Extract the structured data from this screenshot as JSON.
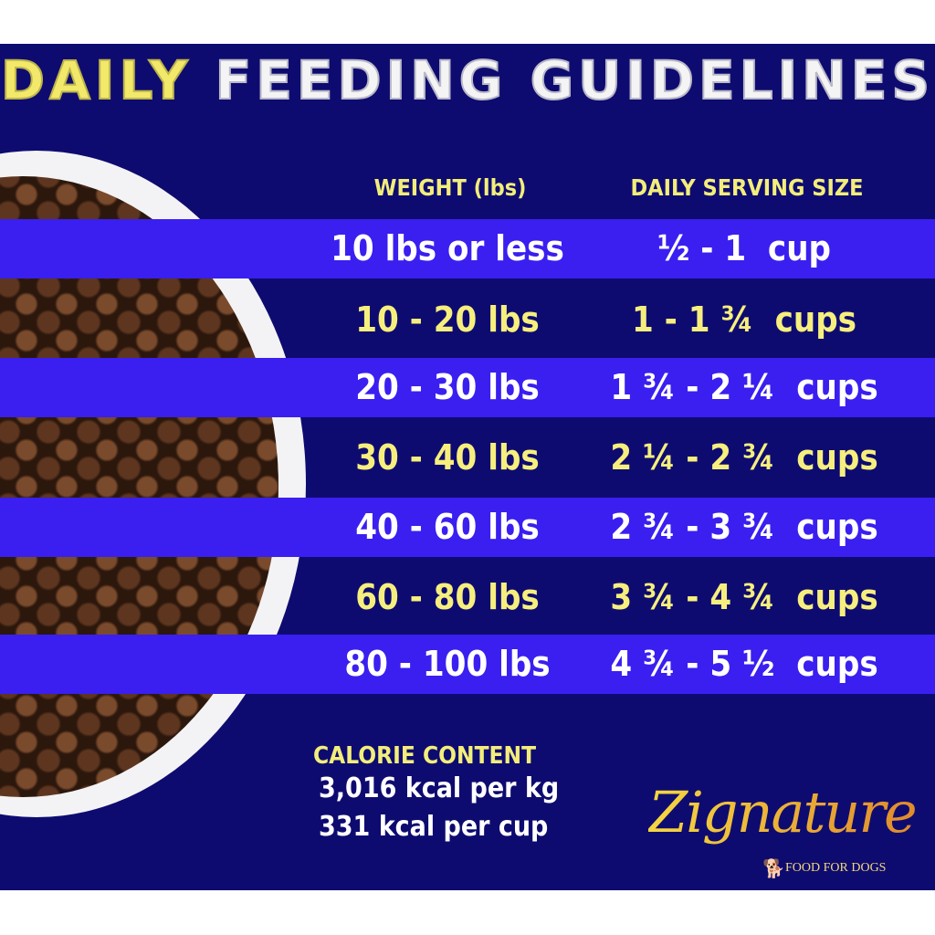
{
  "title": {
    "highlight": "DAILY",
    "rest": "FEEDING GUIDELINES"
  },
  "table": {
    "headers": [
      "WEIGHT (lbs)",
      "DAILY SERVING SIZE"
    ],
    "rows": [
      {
        "weight": "10 lbs or less",
        "serving": "½ - 1  cup"
      },
      {
        "weight": "10 - 20 lbs",
        "serving": "1 - 1 ¾  cups"
      },
      {
        "weight": "20 - 30 lbs",
        "serving": "1 ¾ - 2 ¼  cups"
      },
      {
        "weight": "30 - 40 lbs",
        "serving": "2 ¼ - 2 ¾  cups"
      },
      {
        "weight": "40 - 60 lbs",
        "serving": "2 ¾ - 3 ¾  cups"
      },
      {
        "weight": "60 - 80 lbs",
        "serving": "3 ¾ - 4 ¾  cups"
      },
      {
        "weight": "80 - 100 lbs",
        "serving": "4 ¾ - 5 ½  cups"
      }
    ]
  },
  "calorie": {
    "heading": "CALORIE CONTENT",
    "per_kg": "3,016 kcal per kg",
    "per_cup": "331 kcal per cup"
  },
  "logo": {
    "brand": "Zignature",
    "tagline": "FOOD FOR DOGS",
    "icon": "dog-icon"
  },
  "colors": {
    "background": "#0e0b70",
    "stripe": "#3a1ff0",
    "yellow": "#f3ee7a"
  }
}
